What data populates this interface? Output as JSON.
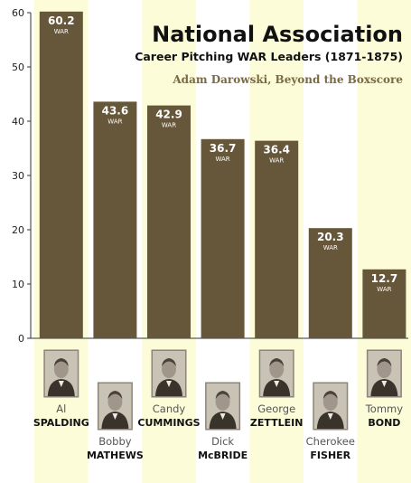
{
  "chart_data": {
    "type": "bar",
    "title": "National Association",
    "subtitle": "Career Pitching WAR Leaders (1871-1875)",
    "credit": "Adam Darowski, Beyond the Boxscore",
    "ylim": [
      0,
      60
    ],
    "yticks": [
      0,
      10,
      20,
      30,
      40,
      50,
      60
    ],
    "value_unit": "WAR",
    "grid": false,
    "players": [
      {
        "first": "Al",
        "last": "SPALDING",
        "value": 60.2
      },
      {
        "first": "Bobby",
        "last": "MATHEWS",
        "value": 43.6
      },
      {
        "first": "Candy",
        "last": "CUMMINGS",
        "value": 42.9
      },
      {
        "first": "Dick",
        "last": "McBRIDE",
        "value": 36.7
      },
      {
        "first": "George",
        "last": "ZETTLEIN",
        "value": 36.4
      },
      {
        "first": "Cherokee",
        "last": "FISHER",
        "value": 20.3
      },
      {
        "first": "Tommy",
        "last": "BOND",
        "value": 12.7
      }
    ]
  },
  "colors": {
    "bar": "#66563a",
    "stripe": "#fcfcd8",
    "text": "#222222",
    "credit": "#7a6a44",
    "photo_bg": "#c9c3b6"
  }
}
